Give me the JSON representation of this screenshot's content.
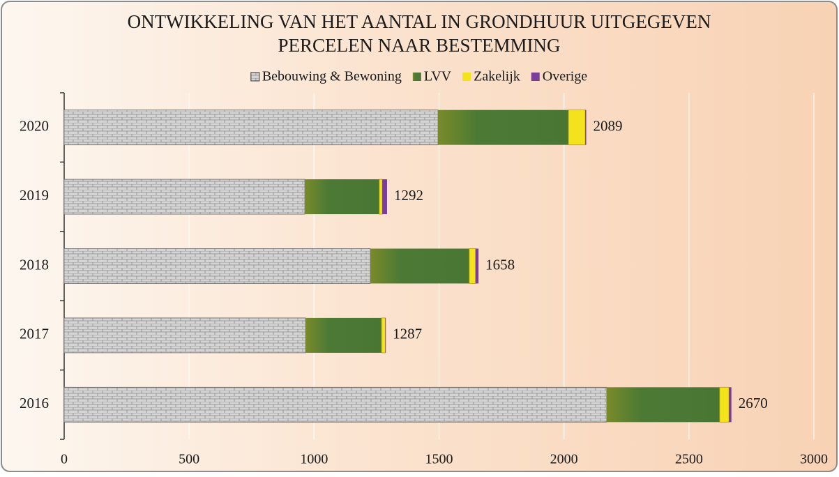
{
  "chart_data": {
    "type": "stacked_bar_horizontal",
    "title": [
      "ONTWIKKELING VAN HET AANTAL IN GRONDHUUR UITGEGEVEN",
      "PERCELEN NAAR BESTEMMING"
    ],
    "categories": [
      "2020",
      "2019",
      "2018",
      "2017",
      "2016"
    ],
    "series": [
      {
        "name": "Bebouwing & Bewoning",
        "color": "#c8c8c8",
        "values": [
          1496,
          963,
          1225,
          966,
          2171
        ]
      },
      {
        "name": "LVV",
        "color": "#4f7a36",
        "values": [
          522,
          298,
          396,
          304,
          452
        ]
      },
      {
        "name": "Zakelijk",
        "color": "#f4e21c",
        "values": [
          67,
          12,
          25,
          15,
          37
        ]
      },
      {
        "name": "Overige",
        "color": "#7a3d98",
        "values": [
          4,
          19,
          12,
          2,
          10
        ]
      }
    ],
    "totals": [
      2089,
      1292,
      1658,
      1287,
      2670
    ],
    "xlim": [
      0,
      3000
    ],
    "xticks": [
      0,
      500,
      1000,
      1500,
      2000,
      2500,
      3000
    ],
    "grid": true,
    "legend": "top"
  }
}
